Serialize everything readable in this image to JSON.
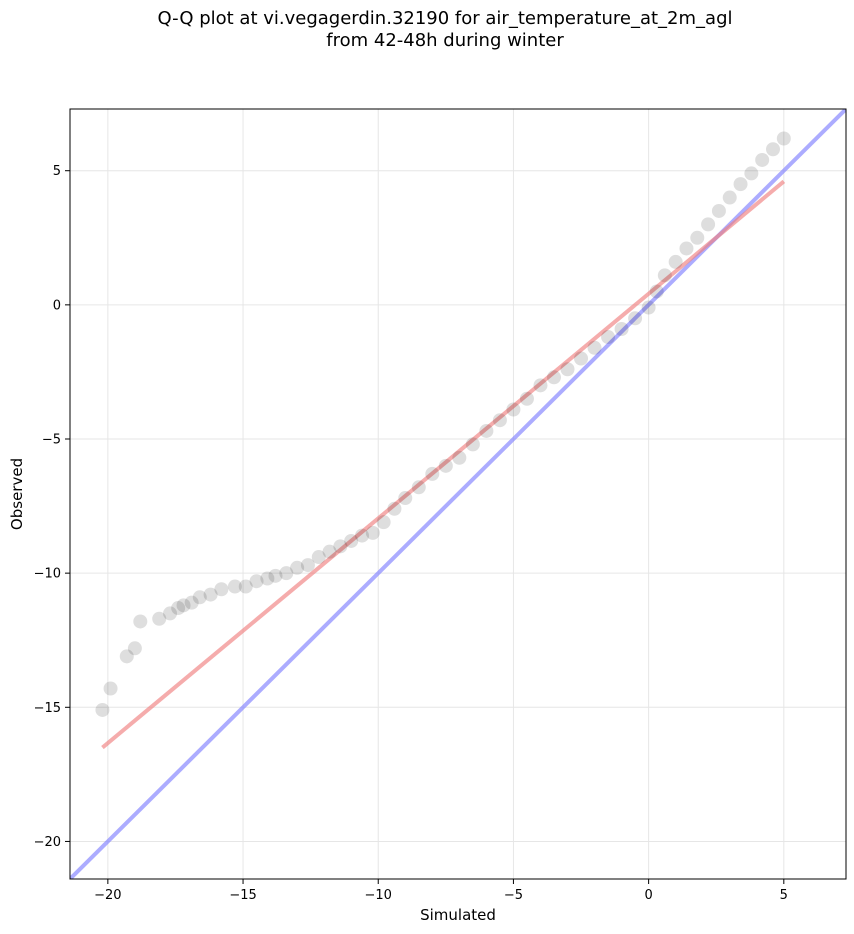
{
  "chart_data": {
    "type": "scatter",
    "title_line1": "Q-Q plot at vi.vegagerdin.32190 for air_temperature_at_2m_agl",
    "title_line2": "from 42-48h during winter",
    "xlabel": "Simulated",
    "ylabel": "Observed",
    "xlim": [
      -21.4,
      7.3
    ],
    "ylim": [
      -21.4,
      7.3
    ],
    "xticks": [
      -20,
      -15,
      -10,
      -5,
      0,
      5
    ],
    "yticks": [
      -20,
      -15,
      -10,
      -5,
      0,
      5
    ],
    "xtick_labels": [
      "−20",
      "−15",
      "−10",
      "−5",
      "0",
      "5"
    ],
    "ytick_labels": [
      "−20",
      "−15",
      "−10",
      "−5",
      "0",
      "5"
    ],
    "grid": true,
    "colors": {
      "points": "#000000",
      "fit_line": "#f08080",
      "identity_line": "#8080ff"
    },
    "identity_line": {
      "x": [
        -21.4,
        7.3
      ],
      "y": [
        -21.4,
        7.3
      ]
    },
    "fit_line": {
      "x": [
        -20.2,
        5.0
      ],
      "y": [
        -16.5,
        4.6
      ]
    },
    "quantiles": {
      "x": [
        -20.2,
        -19.9,
        -19.3,
        -19.0,
        -18.8,
        -18.1,
        -17.7,
        -17.4,
        -17.2,
        -16.9,
        -16.6,
        -16.2,
        -15.8,
        -15.3,
        -14.9,
        -14.5,
        -14.1,
        -13.8,
        -13.4,
        -13.0,
        -12.6,
        -12.2,
        -11.8,
        -11.4,
        -11.0,
        -10.6,
        -10.2,
        -9.8,
        -9.4,
        -9.0,
        -8.5,
        -8.0,
        -7.5,
        -7.0,
        -6.5,
        -6.0,
        -5.5,
        -5.0,
        -4.5,
        -4.0,
        -3.5,
        -3.0,
        -2.5,
        -2.0,
        -1.5,
        -1.0,
        -0.5,
        0.0,
        0.3,
        0.6,
        1.0,
        1.4,
        1.8,
        2.2,
        2.6,
        3.0,
        3.4,
        3.8,
        4.2,
        4.6,
        5.0
      ],
      "y": [
        -15.1,
        -14.3,
        -13.1,
        -12.8,
        -11.8,
        -11.7,
        -11.5,
        -11.3,
        -11.2,
        -11.1,
        -10.9,
        -10.8,
        -10.6,
        -10.5,
        -10.5,
        -10.3,
        -10.2,
        -10.1,
        -10.0,
        -9.8,
        -9.7,
        -9.4,
        -9.2,
        -9.0,
        -8.8,
        -8.6,
        -8.5,
        -8.1,
        -7.6,
        -7.2,
        -6.8,
        -6.3,
        -6.0,
        -5.7,
        -5.2,
        -4.7,
        -4.3,
        -3.9,
        -3.5,
        -3.0,
        -2.7,
        -2.4,
        -2.0,
        -1.6,
        -1.2,
        -0.9,
        -0.5,
        -0.1,
        0.5,
        1.1,
        1.6,
        2.1,
        2.5,
        3.0,
        3.5,
        4.0,
        4.5,
        4.9,
        5.4,
        5.8,
        6.2
      ]
    }
  }
}
